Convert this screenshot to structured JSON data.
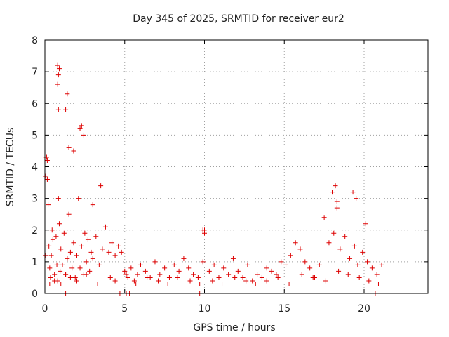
{
  "chart_data": {
    "type": "scatter",
    "title": "Day 345 of 2025, SRMTID for receiver eur2",
    "xlabel": "GPS time / hours",
    "ylabel": "SRMTID / TECUs",
    "xlim": [
      0,
      24
    ],
    "ylim": [
      0,
      8
    ],
    "xticks": [
      0,
      5,
      10,
      15,
      20
    ],
    "xtick_labels": [
      "0",
      "5",
      "10",
      "15",
      "20"
    ],
    "yticks": [
      0,
      1,
      2,
      3,
      4,
      5,
      6,
      7,
      8
    ],
    "ytick_labels": [
      "0",
      "1",
      "2",
      "3",
      "4",
      "5",
      "6",
      "7",
      "8"
    ],
    "grid": true,
    "marker": "+",
    "color": "#dd0000",
    "series": [
      {
        "name": "SRMTID",
        "x": [
          0.05,
          0.1,
          0.15,
          0.2,
          0.25,
          0.3,
          0.35,
          0.4,
          0.45,
          0.5,
          0.6,
          0.7,
          0.75,
          0.8,
          0.85,
          0.9,
          0.95,
          1.0,
          1.1,
          1.2,
          1.3,
          1.4,
          1.5,
          1.6,
          1.7,
          1.8,
          1.9,
          2.0,
          2.1,
          2.2,
          2.3,
          2.4,
          2.5,
          2.6,
          2.7,
          2.8,
          2.9,
          3.0,
          3.2,
          3.4,
          3.6,
          3.8,
          4.0,
          4.2,
          4.4,
          4.6,
          4.8,
          5.0,
          5.2,
          5.4,
          5.6,
          5.8,
          6.0,
          6.3,
          6.6,
          6.9,
          7.2,
          7.5,
          7.8,
          8.1,
          8.4,
          8.7,
          9.0,
          9.3,
          9.6,
          9.9,
          10.0,
          10.3,
          10.6,
          10.9,
          11.2,
          11.5,
          11.8,
          12.1,
          12.4,
          12.7,
          13.0,
          13.3,
          13.6,
          13.9,
          14.2,
          14.5,
          14.8,
          15.1,
          15.4,
          15.7,
          16.0,
          16.3,
          16.6,
          16.9,
          17.2,
          17.5,
          17.8,
          18.1,
          18.3,
          18.5,
          18.8,
          19.1,
          19.4,
          19.6,
          19.9,
          20.2,
          20.5,
          20.8,
          21.1,
          0.8,
          0.85,
          0.9,
          0.8,
          0.85,
          1.3,
          1.4,
          0.1,
          0.15,
          2.2,
          2.3,
          2.4,
          1.5,
          1.8,
          18.0,
          18.2,
          18.3,
          19.3,
          19.5,
          20.1,
          1.3,
          3.0,
          3.5,
          9.9,
          10.0,
          0.05,
          0.3,
          0.6,
          1.0,
          1.6,
          2.0,
          2.6,
          3.3,
          4.1,
          4.4,
          5.1,
          5.7,
          6.4,
          7.1,
          7.7,
          8.3,
          9.1,
          9.7,
          10.5,
          11.1,
          11.9,
          12.6,
          13.2,
          13.9,
          14.6,
          15.3,
          16.1,
          16.8,
          17.6,
          18.4,
          19.0,
          19.7,
          20.3,
          20.9,
          1.3,
          4.7,
          5.1,
          5.3,
          9.7,
          20.7
        ],
        "y": [
          3.7,
          4.3,
          3.6,
          2.8,
          1.5,
          0.8,
          0.5,
          1.2,
          2.0,
          1.7,
          0.6,
          1.8,
          0.9,
          0.4,
          3.0,
          2.2,
          0.7,
          1.4,
          0.9,
          1.9,
          0.6,
          1.1,
          2.5,
          1.3,
          0.8,
          1.6,
          0.5,
          1.2,
          3.0,
          0.8,
          1.5,
          0.6,
          1.9,
          1.0,
          1.7,
          0.7,
          1.3,
          1.1,
          1.8,
          0.9,
          1.4,
          2.1,
          1.3,
          1.6,
          1.2,
          1.5,
          1.3,
          0.7,
          0.5,
          0.8,
          0.4,
          0.6,
          0.9,
          0.7,
          0.5,
          1.0,
          0.6,
          0.8,
          0.5,
          0.9,
          0.7,
          1.1,
          0.8,
          0.6,
          0.5,
          1.0,
          2.0,
          0.7,
          0.9,
          0.5,
          0.8,
          0.6,
          1.1,
          0.7,
          0.5,
          0.9,
          0.4,
          0.6,
          0.5,
          0.8,
          0.7,
          0.6,
          1.0,
          0.9,
          1.2,
          1.6,
          1.4,
          1.0,
          0.8,
          0.5,
          0.9,
          2.4,
          1.6,
          1.9,
          2.7,
          1.4,
          1.8,
          1.1,
          1.5,
          0.9,
          1.3,
          1.0,
          0.8,
          0.6,
          0.9,
          7.2,
          6.9,
          7.1,
          6.6,
          5.8,
          5.8,
          6.3,
          4.3,
          4.2,
          5.2,
          5.3,
          5.0,
          4.6,
          4.5,
          3.2,
          3.4,
          2.9,
          3.2,
          3.0,
          2.2,
          0.6,
          2.8,
          3.4,
          2.0,
          1.9,
          1.2,
          0.3,
          0.4,
          0.3,
          0.5,
          0.4,
          0.6,
          0.3,
          0.5,
          0.4,
          0.6,
          0.3,
          0.5,
          0.4,
          0.3,
          0.5,
          0.4,
          0.3,
          0.4,
          0.3,
          0.5,
          0.4,
          0.3,
          0.4,
          0.5,
          0.3,
          0.6,
          0.5,
          0.4,
          0.7,
          0.6,
          0.5,
          0.4,
          0.3,
          0.0,
          0.0,
          0.0,
          0.0,
          0.0,
          0.0
        ]
      }
    ]
  }
}
